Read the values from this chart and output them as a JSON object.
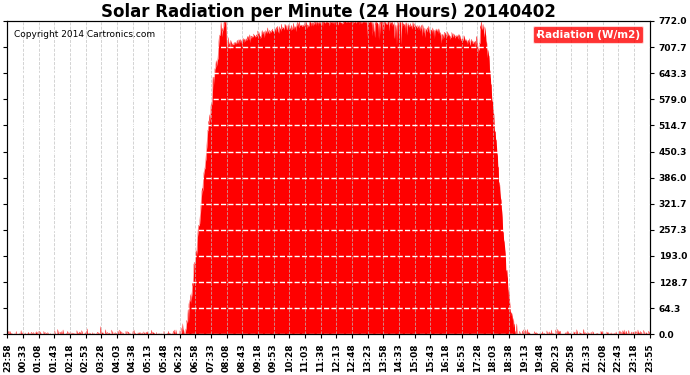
{
  "title": "Solar Radiation per Minute (24 Hours) 20140402",
  "copyright": "Copyright 2014 Cartronics.com",
  "legend_label": "Radiation (W/m2)",
  "background_color": "#ffffff",
  "plot_bg_color": "#ffffff",
  "fill_color": "#ff0000",
  "line_color": "#ff0000",
  "grid_h_color": "#ffffff",
  "grid_v_color": "#c0c0c0",
  "ytick_values": [
    0.0,
    64.3,
    128.7,
    193.0,
    257.3,
    321.7,
    386.0,
    450.3,
    514.7,
    579.0,
    643.3,
    707.7,
    772.0
  ],
  "ymax": 772.0,
  "ymin": 0.0,
  "xtick_labels": [
    "23:58",
    "00:33",
    "01:08",
    "01:43",
    "02:18",
    "02:53",
    "03:28",
    "04:03",
    "04:38",
    "05:13",
    "05:48",
    "06:23",
    "06:58",
    "07:33",
    "08:08",
    "08:43",
    "09:18",
    "09:53",
    "10:28",
    "11:03",
    "11:38",
    "12:13",
    "12:48",
    "13:23",
    "13:58",
    "14:33",
    "15:08",
    "15:43",
    "16:18",
    "16:53",
    "17:28",
    "18:03",
    "18:38",
    "19:13",
    "19:48",
    "20:23",
    "20:58",
    "21:33",
    "22:08",
    "22:43",
    "23:18",
    "23:55"
  ],
  "title_fontsize": 12,
  "tick_fontsize": 6.5,
  "legend_fontsize": 7.5
}
